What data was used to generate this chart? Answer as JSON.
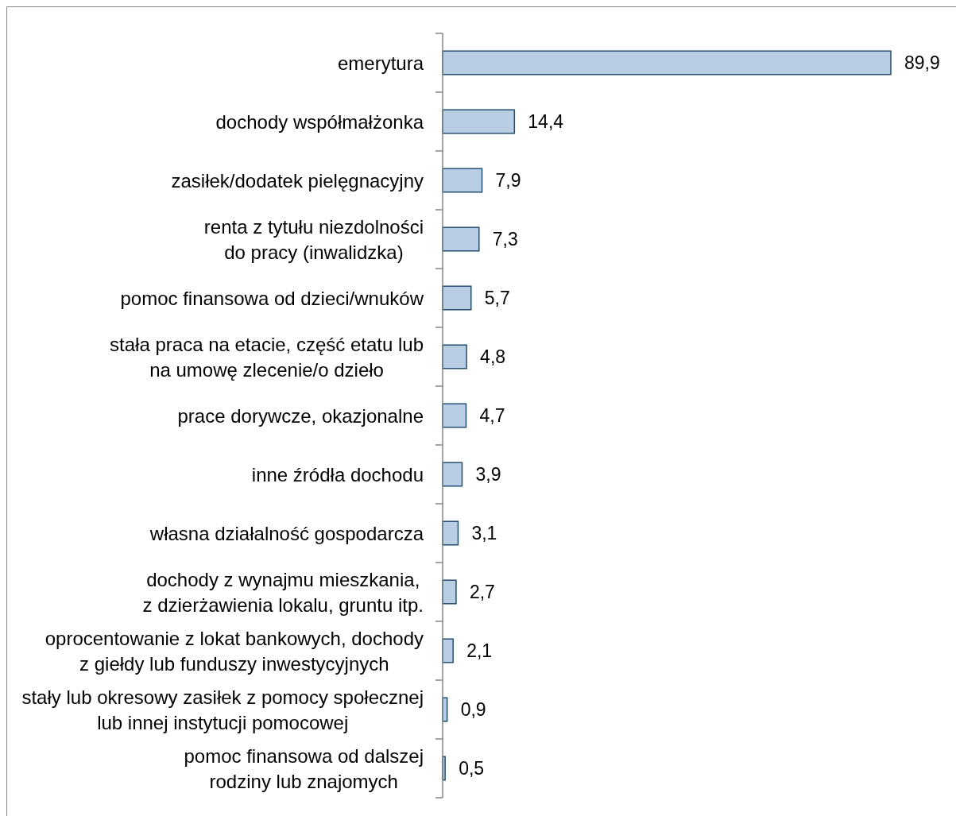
{
  "chart_data": {
    "type": "bar",
    "orientation": "horizontal",
    "categories": [
      "emerytura",
      "dochody współmałżonka",
      "zasiłek/dodatek pielęgnacyjny",
      "renta z tytułu niezdolności\ndo pracy (inwalidzka)",
      "pomoc finansowa od dzieci/wnuków",
      "stała praca na etacie, część etatu lub\nna umowę zlecenie/o dzieło",
      "prace dorywcze, okazjonalne",
      "inne źródła dochodu",
      "własna działalność gospodarcza",
      "dochody z wynajmu mieszkania,\nz dzierżawienia lokalu, gruntu itp.",
      "oprocentowanie z lokat bankowych, dochody\nz giełdy lub funduszy inwestycyjnych",
      "stały lub okresowy zasiłek z pomocy społecznej\nlub innej instytucji pomocowej",
      "pomoc finansowa od dalszej\nrodziny lub znajomych"
    ],
    "values": [
      89.9,
      14.4,
      7.9,
      7.3,
      5.7,
      4.8,
      4.7,
      3.9,
      3.1,
      2.7,
      2.1,
      0.9,
      0.5
    ],
    "value_labels": [
      "89,9",
      "14,4",
      "7,9",
      "7,3",
      "5,7",
      "4,8",
      "4,7",
      "3,9",
      "3,1",
      "2,7",
      "2,1",
      "0,9",
      "0,5"
    ],
    "color": "#b9cde5",
    "tick_labels": "y"
  }
}
